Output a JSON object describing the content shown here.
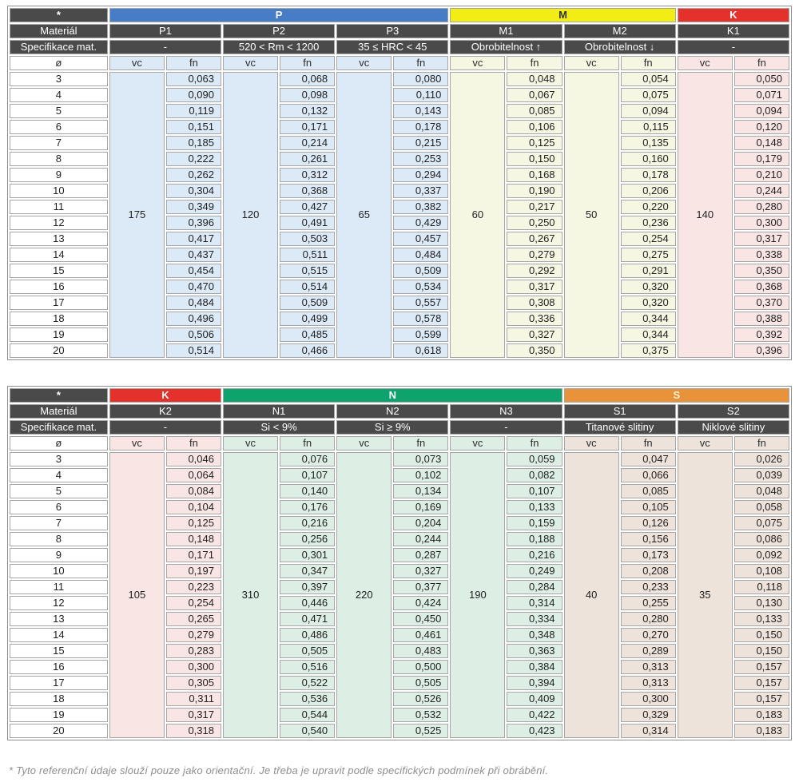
{
  "labels": {
    "star": "*",
    "material": "Materiál",
    "spec": "Specifikace mat.",
    "diameter": "ø",
    "vc": "vc",
    "fn": "fn"
  },
  "footnote": "* Tyto referenční údaje slouží pouze jako orientační. Je třeba je upravit podle specifických podmínek při obrábění.",
  "diameters": [
    "3",
    "4",
    "5",
    "6",
    "7",
    "8",
    "9",
    "10",
    "11",
    "12",
    "13",
    "14",
    "15",
    "16",
    "17",
    "18",
    "19",
    "20"
  ],
  "colors": {
    "header_dark": "#4a4a4a",
    "band_P": "#477dc6",
    "band_M": "#f2ee15",
    "band_K": "#e5312b",
    "band_N": "#0ea26d",
    "band_S": "#e8923a",
    "tint_P": "#dce9f7",
    "tint_M": "#f5f7e2",
    "tint_K": "#fae5e5",
    "tint_N": "#ddeee5",
    "tint_S": "#ede3da"
  },
  "tables": [
    {
      "groups": [
        {
          "code": "P",
          "band_color": "#477dc6",
          "band_text_color": "#ffffff",
          "tint": "#dce9f7",
          "columns": [
            {
              "material": "P1",
              "spec": "-",
              "vc": "175",
              "fn": [
                "0,063",
                "0,090",
                "0,119",
                "0,151",
                "0,185",
                "0,222",
                "0,262",
                "0,304",
                "0,349",
                "0,396",
                "0,417",
                "0,437",
                "0,454",
                "0,470",
                "0,484",
                "0,496",
                "0,506",
                "0,514"
              ]
            },
            {
              "material": "P2",
              "spec": "520 < Rm < 1200",
              "vc": "120",
              "fn": [
                "0,068",
                "0,098",
                "0,132",
                "0,171",
                "0,214",
                "0,261",
                "0,312",
                "0,368",
                "0,427",
                "0,491",
                "0,503",
                "0,511",
                "0,515",
                "0,514",
                "0,509",
                "0,499",
                "0,485",
                "0,466"
              ]
            },
            {
              "material": "P3",
              "spec": "35 ≤ HRC < 45",
              "vc": "65",
              "fn": [
                "0,080",
                "0,110",
                "0,143",
                "0,178",
                "0,215",
                "0,253",
                "0,294",
                "0,337",
                "0,382",
                "0,429",
                "0,457",
                "0,484",
                "0,509",
                "0,534",
                "0,557",
                "0,578",
                "0,599",
                "0,618"
              ]
            }
          ]
        },
        {
          "code": "M",
          "band_color": "#f2ee15",
          "band_text_color": "#333333",
          "tint": "#f5f7e2",
          "columns": [
            {
              "material": "M1",
              "spec": "Obrobitelnost ↑",
              "vc": "60",
              "fn": [
                "0,048",
                "0,067",
                "0,085",
                "0,106",
                "0,125",
                "0,150",
                "0,168",
                "0,190",
                "0,217",
                "0,250",
                "0,267",
                "0,279",
                "0,292",
                "0,317",
                "0,308",
                "0,336",
                "0,327",
                "0,350"
              ]
            },
            {
              "material": "M2",
              "spec": "Obrobitelnost ↓",
              "vc": "50",
              "fn": [
                "0,054",
                "0,075",
                "0,094",
                "0,115",
                "0,135",
                "0,160",
                "0,178",
                "0,206",
                "0,220",
                "0,236",
                "0,254",
                "0,275",
                "0,291",
                "0,320",
                "0,320",
                "0,344",
                "0,344",
                "0,375"
              ]
            }
          ]
        },
        {
          "code": "K",
          "band_color": "#e5312b",
          "band_text_color": "#ffffff",
          "tint": "#fae5e5",
          "columns": [
            {
              "material": "K1",
              "spec": "-",
              "vc": "140",
              "fn": [
                "0,050",
                "0,071",
                "0,094",
                "0,120",
                "0,148",
                "0,179",
                "0,210",
                "0,244",
                "0,280",
                "0,300",
                "0,317",
                "0,338",
                "0,350",
                "0,368",
                "0,370",
                "0,388",
                "0,392",
                "0,396"
              ]
            }
          ]
        }
      ]
    },
    {
      "groups": [
        {
          "code": "K",
          "band_color": "#e5312b",
          "band_text_color": "#ffffff",
          "tint": "#fae5e5",
          "columns": [
            {
              "material": "K2",
              "spec": "-",
              "vc": "105",
              "fn": [
                "0,046",
                "0,064",
                "0,084",
                "0,104",
                "0,125",
                "0,148",
                "0,171",
                "0,197",
                "0,223",
                "0,254",
                "0,265",
                "0,279",
                "0,283",
                "0,300",
                "0,305",
                "0,311",
                "0,317",
                "0,318"
              ]
            }
          ]
        },
        {
          "code": "N",
          "band_color": "#0ea26d",
          "band_text_color": "#ffffff",
          "tint": "#ddeee5",
          "columns": [
            {
              "material": "N1",
              "spec": "Si < 9%",
              "vc": "310",
              "fn": [
                "0,076",
                "0,107",
                "0,140",
                "0,176",
                "0,216",
                "0,256",
                "0,301",
                "0,347",
                "0,397",
                "0,446",
                "0,471",
                "0,486",
                "0,505",
                "0,516",
                "0,522",
                "0,536",
                "0,544",
                "0,540"
              ]
            },
            {
              "material": "N2",
              "spec": "Si ≥ 9%",
              "vc": "220",
              "fn": [
                "0,073",
                "0,102",
                "0,134",
                "0,169",
                "0,204",
                "0,244",
                "0,287",
                "0,327",
                "0,377",
                "0,424",
                "0,450",
                "0,461",
                "0,483",
                "0,500",
                "0,505",
                "0,526",
                "0,532",
                "0,525"
              ]
            },
            {
              "material": "N3",
              "spec": "-",
              "vc": "190",
              "fn": [
                "0,059",
                "0,082",
                "0,107",
                "0,133",
                "0,159",
                "0,188",
                "0,216",
                "0,249",
                "0,284",
                "0,314",
                "0,334",
                "0,348",
                "0,363",
                "0,384",
                "0,394",
                "0,409",
                "0,422",
                "0,423"
              ]
            }
          ]
        },
        {
          "code": "S",
          "band_color": "#e8923a",
          "band_text_color": "#fdf3cd",
          "tint": "#ede3da",
          "columns": [
            {
              "material": "S1",
              "spec": "Titanové slitiny",
              "vc": "40",
              "fn": [
                "0,047",
                "0,066",
                "0,085",
                "0,105",
                "0,126",
                "0,156",
                "0,173",
                "0,208",
                "0,233",
                "0,255",
                "0,280",
                "0,270",
                "0,289",
                "0,313",
                "0,313",
                "0,300",
                "0,329",
                "0,314"
              ]
            },
            {
              "material": "S2",
              "spec": "Niklové slitiny",
              "vc": "35",
              "fn": [
                "0,026",
                "0,039",
                "0,048",
                "0,058",
                "0,075",
                "0,086",
                "0,092",
                "0,108",
                "0,118",
                "0,130",
                "0,133",
                "0,150",
                "0,150",
                "0,157",
                "0,157",
                "0,157",
                "0,183",
                "0,183"
              ]
            }
          ]
        }
      ]
    }
  ]
}
